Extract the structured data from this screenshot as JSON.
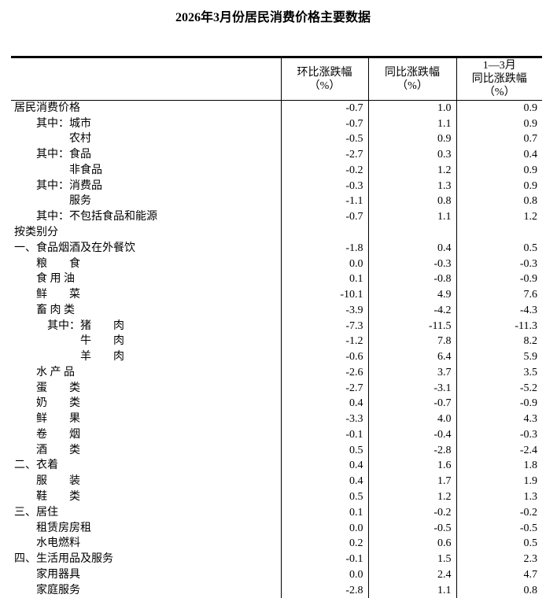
{
  "title": "2026年3月份居民消费价格主要数据",
  "headers": [
    {
      "line1": "",
      "line2": "环比涨跌幅",
      "line3": "（%）"
    },
    {
      "line1": "",
      "line2": "同比涨跌幅",
      "line3": "（%）"
    },
    {
      "line1": "1—3月",
      "line2": "同比涨跌幅",
      "line3": "（%）"
    }
  ],
  "rows": [
    {
      "label": "居民消费价格",
      "level": 0,
      "mom": "-0.7",
      "yoy": "1.0",
      "ytd": "0.9"
    },
    {
      "label": "其中：城市",
      "level": 1,
      "mom": "-0.7",
      "yoy": "1.1",
      "ytd": "0.9"
    },
    {
      "label": "农村",
      "level": 2,
      "mom": "-0.5",
      "yoy": "0.9",
      "ytd": "0.7"
    },
    {
      "label": "其中：食品",
      "level": 1,
      "mom": "-2.7",
      "yoy": "0.3",
      "ytd": "0.4"
    },
    {
      "label": "非食品",
      "level": 2,
      "mom": "-0.2",
      "yoy": "1.2",
      "ytd": "0.9"
    },
    {
      "label": "其中：消费品",
      "level": 1,
      "mom": "-0.3",
      "yoy": "1.3",
      "ytd": "0.9"
    },
    {
      "label": "服务",
      "level": 2,
      "mom": "-1.1",
      "yoy": "0.8",
      "ytd": "0.8"
    },
    {
      "label": "其中：不包括食品和能源",
      "level": 1,
      "mom": "-0.7",
      "yoy": "1.1",
      "ytd": "1.2"
    },
    {
      "label": "按类别分",
      "level": 0,
      "mom": "",
      "yoy": "",
      "ytd": ""
    },
    {
      "label": "一、食品烟酒及在外餐饮",
      "level": 0,
      "mom": "-1.8",
      "yoy": "0.4",
      "ytd": "0.5"
    },
    {
      "label": "粮　　食",
      "level": 1,
      "mom": "0.0",
      "yoy": "-0.3",
      "ytd": "-0.3"
    },
    {
      "label": "食 用 油",
      "level": 1,
      "mom": "0.1",
      "yoy": "-0.8",
      "ytd": "-0.9"
    },
    {
      "label": "鲜　　菜",
      "level": 1,
      "mom": "-10.1",
      "yoy": "4.9",
      "ytd": "7.6"
    },
    {
      "label": "畜 肉 类",
      "level": 1,
      "mom": "-3.9",
      "yoy": "-4.2",
      "ytd": "-4.3"
    },
    {
      "label": "其中：猪　　肉",
      "level": 3,
      "mom": "-7.3",
      "yoy": "-11.5",
      "ytd": "-11.3"
    },
    {
      "label": "牛　　肉",
      "level": 4,
      "mom": "-1.2",
      "yoy": "7.8",
      "ytd": "8.2"
    },
    {
      "label": "羊　　肉",
      "level": 4,
      "mom": "-0.6",
      "yoy": "6.4",
      "ytd": "5.9"
    },
    {
      "label": "水 产 品",
      "level": 1,
      "mom": "-2.6",
      "yoy": "3.7",
      "ytd": "3.5"
    },
    {
      "label": "蛋　　类",
      "level": 1,
      "mom": "-2.7",
      "yoy": "-3.1",
      "ytd": "-5.2"
    },
    {
      "label": "奶　　类",
      "level": 1,
      "mom": "0.4",
      "yoy": "-0.7",
      "ytd": "-0.9"
    },
    {
      "label": "鲜　　果",
      "level": 1,
      "mom": "-3.3",
      "yoy": "4.0",
      "ytd": "4.3"
    },
    {
      "label": "卷　　烟",
      "level": 1,
      "mom": "-0.1",
      "yoy": "-0.4",
      "ytd": "-0.3"
    },
    {
      "label": "酒　　类",
      "level": 1,
      "mom": "0.5",
      "yoy": "-2.8",
      "ytd": "-2.4"
    },
    {
      "label": "二、衣着",
      "level": 0,
      "mom": "0.4",
      "yoy": "1.6",
      "ytd": "1.8"
    },
    {
      "label": "服　　装",
      "level": 1,
      "mom": "0.4",
      "yoy": "1.7",
      "ytd": "1.9"
    },
    {
      "label": "鞋　　类",
      "level": 1,
      "mom": "0.5",
      "yoy": "1.2",
      "ytd": "1.3"
    },
    {
      "label": "三、居住",
      "level": 0,
      "mom": "0.1",
      "yoy": "-0.2",
      "ytd": "-0.2"
    },
    {
      "label": "租赁房房租",
      "level": 1,
      "mom": "0.0",
      "yoy": "-0.5",
      "ytd": "-0.5"
    },
    {
      "label": "水电燃料",
      "level": 1,
      "mom": "0.2",
      "yoy": "0.6",
      "ytd": "0.5"
    },
    {
      "label": "四、生活用品及服务",
      "level": 0,
      "mom": "-0.1",
      "yoy": "1.5",
      "ytd": "2.3"
    },
    {
      "label": "家用器具",
      "level": 1,
      "mom": "0.0",
      "yoy": "2.4",
      "ytd": "4.7"
    },
    {
      "label": "家庭服务",
      "level": 1,
      "mom": "-2.8",
      "yoy": "1.1",
      "ytd": "0.8"
    }
  ]
}
